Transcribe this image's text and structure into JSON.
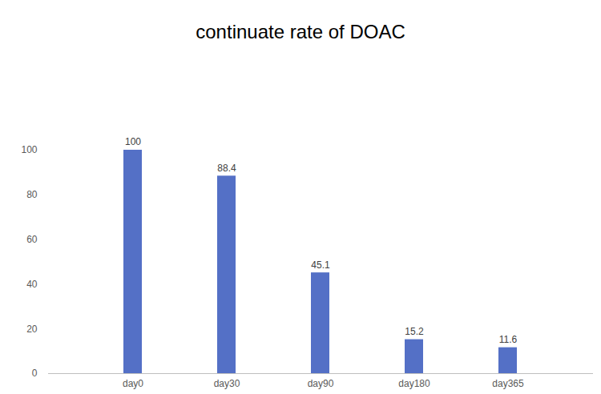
{
  "chart_data": {
    "type": "bar",
    "title": "continuate rate of DOAC",
    "categories": [
      "day0",
      "day30",
      "day90",
      "day180",
      "day365"
    ],
    "values": [
      100,
      88.4,
      45.1,
      15.2,
      11.6
    ],
    "color": "#5470c6",
    "ylim": [
      0,
      100
    ],
    "yticks": [
      0,
      20,
      40,
      60,
      80,
      100
    ],
    "grid": false,
    "data_labels": true
  }
}
